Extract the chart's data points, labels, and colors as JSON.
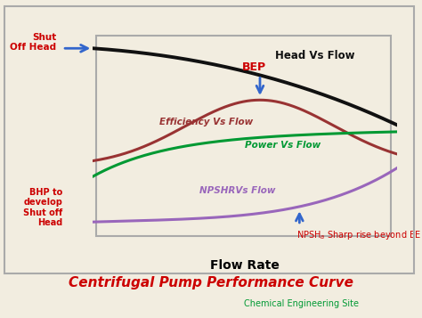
{
  "title": "Centrifugal Pump Performance Curve",
  "subtitle": "Chemical Engineering Site",
  "xlabel": "Flow Rate",
  "bg_color": "#f2ede0",
  "border_color": "#999999",
  "title_color": "#cc0000",
  "subtitle_color": "#009933",
  "curves": {
    "head": {
      "label": "Head Vs Flow",
      "color": "#111111",
      "lw": 2.8
    },
    "efficiency": {
      "label": "Efficiency Vs Flow",
      "color": "#993333",
      "lw": 2.2
    },
    "power": {
      "label": "Power Vs Flow",
      "color": "#009933",
      "lw": 2.2
    },
    "npshr": {
      "label": "NPSHRVs Flow",
      "color": "#9966bb",
      "lw": 2.2
    }
  },
  "annotations": {
    "shut_off_head": {
      "text": "Shut\nOff Head",
      "color": "#cc0000",
      "fontsize": 7.5
    },
    "bhp": {
      "text": "BHP to\ndevelop\nShut off\nHead",
      "color": "#cc0000",
      "fontsize": 7.0
    },
    "bep": {
      "text": "BEP",
      "color": "#cc0000",
      "fontsize": 9
    },
    "npsh_rise": {
      "text": "NPSH",
      "color": "#cc0000",
      "fontsize": 7.5
    },
    "npsh_rise2": {
      "text": " Sharp rise beyond BEP",
      "color": "#cc0000",
      "fontsize": 7.5
    }
  }
}
